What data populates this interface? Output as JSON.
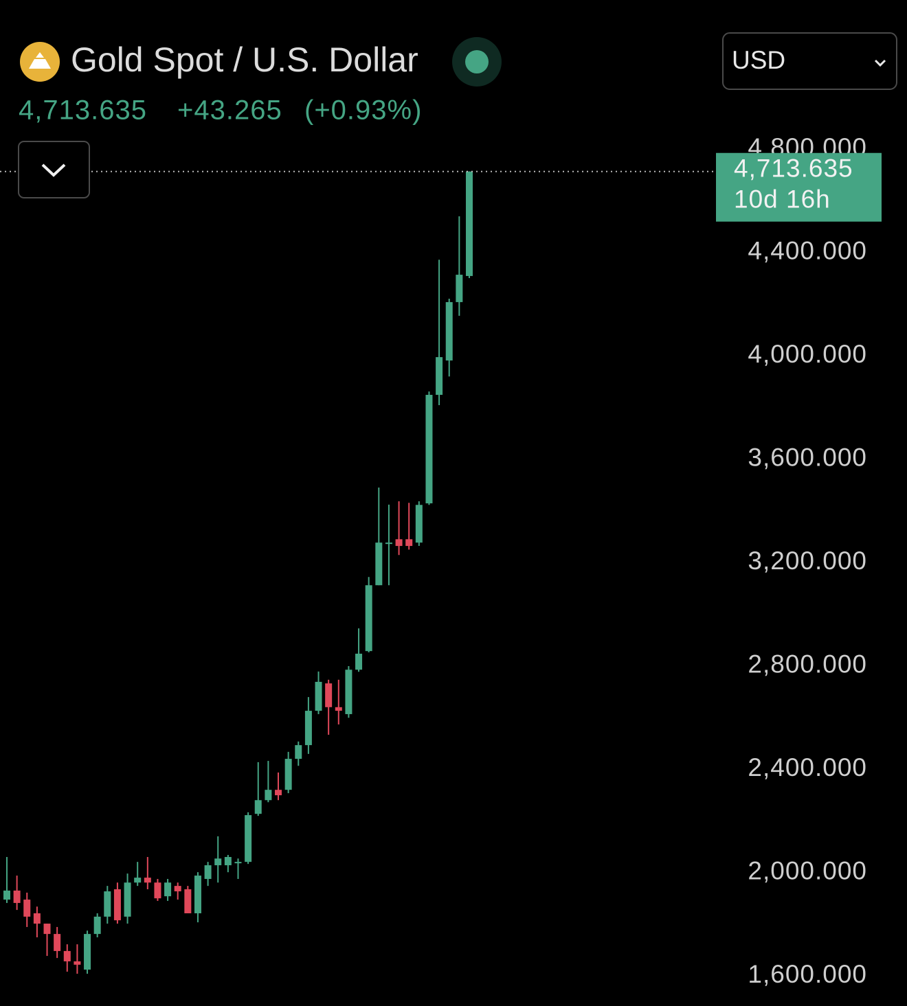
{
  "title": "Gold Spot / U.S. Dollar",
  "currency": "USD",
  "change": {
    "value": 43.265,
    "label": "+43.265"
  },
  "change_percent": {
    "value": 0.93,
    "label": "(+0.93%)"
  },
  "countdown": "10d 16h",
  "chart_data": {
    "type": "candlestick",
    "last_price": {
      "value": 4713.635,
      "label": "4,713.635"
    },
    "up_color": "#45a584",
    "down_color": "#e0485a",
    "categories": [
      null,
      null,
      null,
      null,
      null,
      null,
      null,
      null,
      null,
      null,
      null,
      null,
      null,
      null,
      null,
      null,
      null,
      null,
      null,
      null,
      null,
      null,
      null,
      null,
      null,
      null,
      null,
      null,
      null,
      null,
      null,
      null,
      null,
      null,
      null,
      null,
      null,
      null,
      null,
      null,
      null,
      null,
      null,
      null,
      null,
      null,
      null
    ],
    "series": [
      {
        "open": [
          1895,
          1930,
          1895,
          1842,
          1802,
          1762,
          1696,
          1656,
          1624,
          1762,
          1829,
          1935,
          1829,
          1961,
          1980,
          1961,
          1908,
          1948,
          1935,
          1842,
          1975,
          2028,
          2028,
          2038,
          2041,
          2227,
          2280,
          2320,
          2320,
          2440,
          2493,
          2626,
          2732,
          2640,
          2613,
          2785,
          2857,
          3112,
          3272,
          3290,
          3290,
          3277,
          3429,
          3849,
          3982,
          4208,
          4309
        ],
        "high": [
          2060,
          1988,
          1922,
          1868,
          1802,
          1789,
          1722,
          1722,
          1775,
          1842,
          1948,
          1961,
          1996,
          2041,
          2060,
          1975,
          1975,
          1961,
          1948,
          2001,
          2041,
          2140,
          2068,
          2054,
          2233,
          2427,
          2432,
          2387,
          2467,
          2507,
          2679,
          2778,
          2746,
          2746,
          2799,
          2945,
          3144,
          3490,
          3424,
          3437,
          3431,
          3437,
          3862,
          4372,
          4221,
          4540,
          4713.635
        ],
        "low": [
          1882,
          1855,
          1789,
          1749,
          1677,
          1669,
          1616,
          1608,
          1608,
          1749,
          1802,
          1802,
          1802,
          1948,
          1935,
          1890,
          1890,
          1895,
          1842,
          1807,
          1948,
          1961,
          2001,
          1975,
          2033,
          2219,
          2272,
          2280,
          2307,
          2413,
          2459,
          2613,
          2533,
          2573,
          2599,
          2777,
          2852,
          3112,
          3112,
          3229,
          3250,
          3264,
          3423,
          3809,
          3920,
          4155,
          4301
        ],
        "close": [
          1930,
          1882,
          1829,
          1802,
          1762,
          1696,
          1656,
          1643,
          1762,
          1829,
          1927,
          1815,
          1961,
          1980,
          1961,
          1900,
          1961,
          1927,
          1842,
          1988,
          2028,
          2054,
          2060,
          2041,
          2222,
          2280,
          2320,
          2299,
          2440,
          2493,
          2626,
          2738,
          2640,
          2626,
          2785,
          2847,
          3112,
          3277,
          3277,
          3264,
          3264,
          3423,
          3849,
          3995,
          4208,
          4314,
          4713.635
        ]
      }
    ],
    "ylim": [
      1485,
      5000
    ],
    "yticks": [
      {
        "value": 1600,
        "label": "1,600.000"
      },
      {
        "value": 2000,
        "label": "2,000.000"
      },
      {
        "value": 2400,
        "label": "2,400.000"
      },
      {
        "value": 2800,
        "label": "2,800.000"
      },
      {
        "value": 3200,
        "label": "3,200.000"
      },
      {
        "value": 3600,
        "label": "3,600.000"
      },
      {
        "value": 4000,
        "label": "4,000.000"
      },
      {
        "value": 4400,
        "label": "4,400.000"
      },
      {
        "value": 4800,
        "label": "4,800.000"
      }
    ],
    "grid": false
  }
}
